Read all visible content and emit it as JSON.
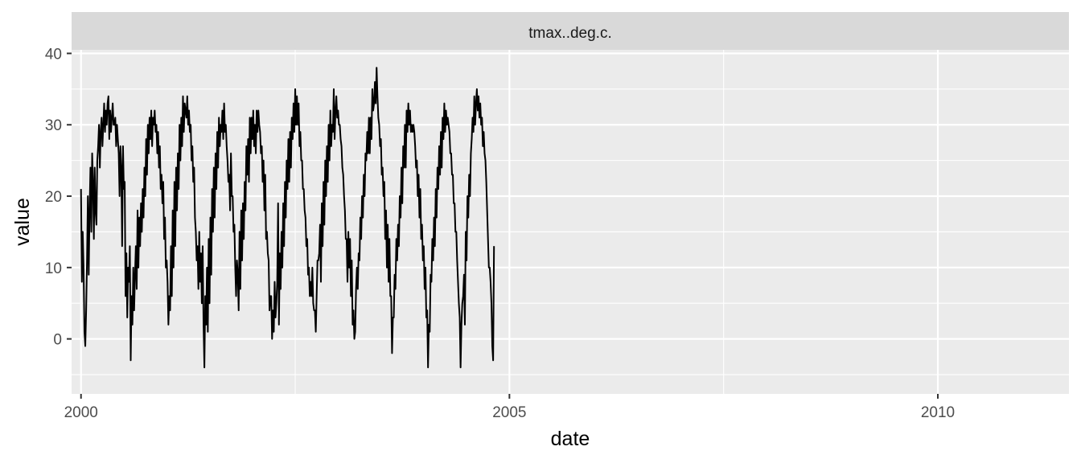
{
  "chart_data": {
    "type": "line",
    "facet_label": "tmax..deg.c.",
    "xlabel": "date",
    "ylabel": "value",
    "xlim": [
      1999.89,
      2011.53
    ],
    "ylim": [
      -7.7,
      40.5
    ],
    "x_ticks": [
      2000,
      2005,
      2010
    ],
    "x_tick_labels": [
      "2000",
      "2005",
      "2010"
    ],
    "y_ticks": [
      0,
      10,
      20,
      30,
      40
    ],
    "y_tick_labels": [
      "0",
      "10",
      "20",
      "30",
      "40"
    ],
    "grid": true,
    "series": [
      {
        "name": "tmax..deg.c.",
        "x_start": 2000.0,
        "x_step_years": 0.01,
        "values": [
          21,
          8,
          15,
          10,
          1,
          -1,
          4,
          11,
          20,
          9,
          18,
          24,
          15,
          26,
          22,
          14,
          24,
          18,
          16,
          25,
          27,
          30,
          24,
          29,
          31,
          27,
          30,
          33,
          29,
          32,
          30,
          33,
          34,
          28,
          32,
          29,
          31,
          33,
          30,
          30,
          31,
          27,
          30,
          28,
          26,
          20,
          27,
          24,
          13,
          27,
          21,
          22,
          6,
          12,
          3,
          10,
          8,
          13,
          -3,
          6,
          2,
          10,
          4,
          9,
          13,
          7,
          18,
          10,
          17,
          13,
          19,
          15,
          21,
          17,
          24,
          20,
          28,
          23,
          30,
          26,
          31,
          28,
          32,
          27,
          31,
          30,
          32,
          29,
          30,
          26,
          29,
          24,
          27,
          21,
          23,
          19,
          22,
          14,
          17,
          10,
          11,
          8,
          2,
          6,
          4,
          13,
          6,
          18,
          10,
          22,
          13,
          24,
          18,
          26,
          21,
          30,
          25,
          31,
          27,
          34,
          29,
          33,
          32,
          31,
          34,
          30,
          32,
          29,
          30,
          25,
          27,
          22,
          24,
          17,
          15,
          11,
          13,
          7,
          15,
          8,
          12,
          5,
          13,
          2,
          -4,
          6,
          2,
          10,
          1,
          14,
          5,
          17,
          9,
          21,
          15,
          24,
          17,
          26,
          21,
          29,
          24,
          31,
          27,
          30,
          29,
          32,
          28,
          33,
          29,
          30,
          27,
          25,
          22,
          23,
          18,
          26,
          20,
          20,
          15,
          16,
          10,
          6,
          11,
          9,
          4,
          15,
          7,
          18,
          11,
          19,
          14,
          22,
          18,
          27,
          23,
          28,
          22,
          31,
          26,
          31,
          28,
          32,
          27,
          30,
          26,
          32,
          29,
          32,
          30,
          29,
          26,
          27,
          22,
          25,
          18,
          23,
          14,
          15,
          12,
          11,
          4,
          6,
          6,
          0,
          4,
          1,
          8,
          3,
          5,
          8,
          19,
          2,
          12,
          7,
          15,
          10,
          19,
          13,
          22,
          17,
          25,
          21,
          28,
          22,
          29,
          24,
          31,
          28,
          33,
          29,
          35,
          30,
          34,
          30,
          33,
          27,
          29,
          25,
          25,
          21,
          21,
          18,
          17,
          13,
          14,
          9,
          10,
          6,
          8,
          6,
          10,
          5,
          4,
          4,
          1,
          6,
          11,
          11,
          12,
          16,
          8,
          19,
          13,
          22,
          16,
          25,
          20,
          27,
          22,
          30,
          25,
          32,
          27,
          30,
          29,
          35,
          28,
          32,
          34,
          31,
          32,
          30,
          30,
          28,
          27,
          24,
          23,
          20,
          18,
          14,
          14,
          8,
          15,
          10,
          14,
          6,
          11,
          2,
          4,
          0,
          1,
          7,
          10,
          7,
          12,
          11,
          17,
          14,
          20,
          17,
          23,
          20,
          26,
          25,
          29,
          26,
          31,
          26,
          31,
          28,
          35,
          32,
          33,
          36,
          33,
          38,
          34,
          31,
          30,
          27,
          28,
          23,
          24,
          20,
          22,
          14,
          18,
          10,
          16,
          8,
          14,
          6,
          6,
          -2,
          3,
          3,
          9,
          7,
          14,
          11,
          16,
          13,
          20,
          17,
          24,
          19,
          27,
          24,
          30,
          24,
          32,
          29,
          33,
          30,
          32,
          29,
          30,
          29,
          30,
          29,
          27,
          24,
          25,
          20,
          23,
          17,
          21,
          14,
          16,
          11,
          13,
          7,
          10,
          3,
          4,
          -4,
          2,
          1,
          9,
          8,
          14,
          11,
          17,
          13,
          21,
          17,
          24,
          21,
          27,
          23,
          29,
          24,
          31,
          28,
          33,
          29,
          32,
          30,
          31,
          30,
          29,
          26,
          26,
          23,
          23,
          19,
          19,
          15,
          15,
          11,
          8,
          5,
          3,
          -4,
          2,
          5,
          6,
          9,
          2,
          15,
          11,
          20,
          17,
          23,
          20,
          26,
          28,
          31,
          29,
          34,
          30,
          33,
          35,
          32,
          34,
          31,
          33,
          30,
          31,
          27,
          29,
          26,
          25,
          22,
          18,
          14,
          10,
          10,
          8,
          5,
          -1,
          -3,
          13
        ]
      }
    ]
  }
}
